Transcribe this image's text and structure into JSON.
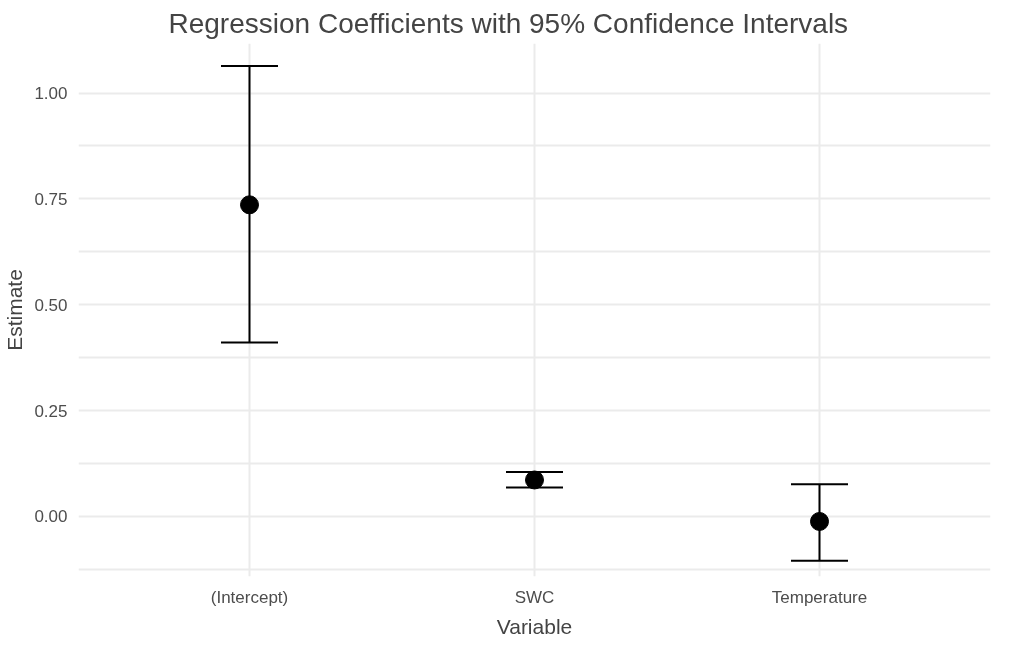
{
  "chart_data": {
    "type": "scatter",
    "title": "Regression Coefficients with 95% Confidence Intervals",
    "xlabel": "Variable",
    "ylabel": "Estimate",
    "categories": [
      "(Intercept)",
      "SWC",
      "Temperature"
    ],
    "color": "#000000",
    "values": [
      0.736,
      0.086,
      -0.012
    ],
    "errors": [
      [
        0.411,
        1.064
      ],
      [
        0.068,
        0.105
      ],
      [
        -0.105,
        0.076
      ]
    ],
    "ylim": [
      -0.142,
      1.117
    ],
    "yticks": [
      {
        "value": -0.125,
        "label": null
      },
      {
        "value": 0,
        "label": "0.00"
      },
      {
        "value": 0.125,
        "label": null
      },
      {
        "value": 0.25,
        "label": "0.25"
      },
      {
        "value": 0.375,
        "label": null
      },
      {
        "value": 0.5,
        "label": "0.50"
      },
      {
        "value": 0.625,
        "label": null
      },
      {
        "value": 0.75,
        "label": "0.75"
      },
      {
        "value": 0.875,
        "label": null
      },
      {
        "value": 1,
        "label": "1.00"
      }
    ],
    "grid": true,
    "marker": "circle"
  }
}
